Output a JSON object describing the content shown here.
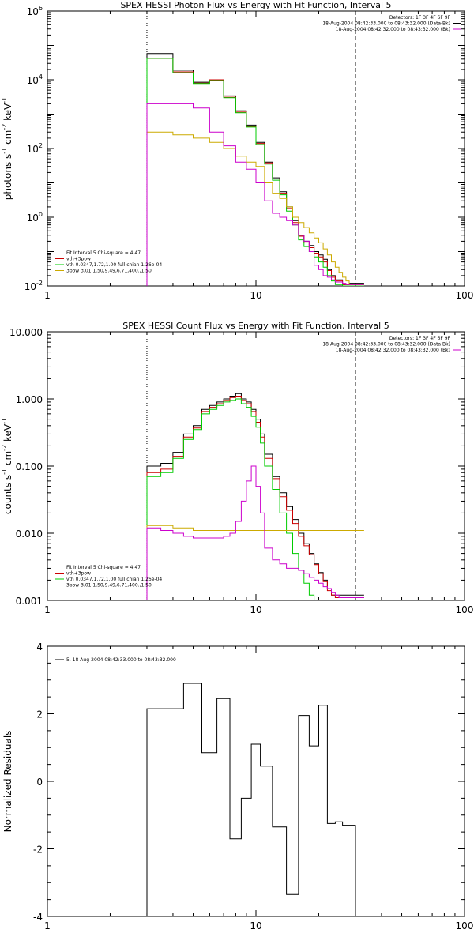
{
  "chart_data": [
    {
      "type": "line",
      "title": "SPEX HESSI Photon Flux vs Energy with Fit Function, Interval 5",
      "ylabel_parts": [
        "photons s",
        "-1",
        " cm",
        "-2",
        " keV",
        "-1"
      ],
      "xscale": "log",
      "yscale": "log",
      "xlim": [
        1,
        100
      ],
      "ylim": [
        0.01,
        1000000
      ],
      "x_ticks": [
        {
          "v": 1,
          "label": "1"
        },
        {
          "v": 10,
          "label": "10"
        },
        {
          "v": 100,
          "label": "100"
        }
      ],
      "y_ticks": [
        {
          "v": 0.01,
          "base": "10",
          "exp": "-2"
        },
        {
          "v": 1,
          "base": "10",
          "exp": "0"
        },
        {
          "v": 100,
          "base": "10",
          "exp": "2"
        },
        {
          "v": 10000,
          "base": "10",
          "exp": "4"
        },
        {
          "v": 1000000,
          "base": "10",
          "exp": "6"
        }
      ],
      "vlines": [
        {
          "x": 3.0,
          "style": "dotted"
        },
        {
          "x": 30.0,
          "style": "dashed"
        }
      ],
      "legend_top_right": [
        {
          "text": "Detectors: 1F 3F 4F 6F 9F",
          "color": ""
        },
        {
          "text": "18-Aug-2004 08:42:33.000 to 08:43:32.000 (Data-Bk)",
          "color": "#000000"
        },
        {
          "text": "18-Aug-2004 08:42:32.000 to 08:43:32.000 (Bk)",
          "color": "#cc00cc"
        }
      ],
      "legend_bottom_left": [
        {
          "text": "Fit Interval  5    Chi-square = 4.47",
          "color": ""
        },
        {
          "text": "vth+3pow",
          "color": "#cc0000"
        },
        {
          "text": "vth  0.0347,1.72,1.00  full chian 1.26e-04",
          "color": "#00cc00"
        },
        {
          "text": "3pow  3.01,1.50,9.49,6.71,400.,1.50",
          "color": "#ccaa00"
        }
      ],
      "bin_edges": [
        3.0,
        3.5,
        4.0,
        4.5,
        5.0,
        5.5,
        6.0,
        6.5,
        7.0,
        7.5,
        8.0,
        8.5,
        9.0,
        9.5,
        10.0,
        10.5,
        11.0,
        12.0,
        13.0,
        14.0,
        15.0,
        16.0,
        17.0,
        18.0,
        19.0,
        20.0,
        21.0,
        22.0,
        23.0,
        24.0,
        25.0,
        26.0,
        27.0,
        28.0,
        30.0,
        33.0
      ],
      "series": [
        {
          "name": "Data-Bk",
          "color": "#000000",
          "values": [
            58000,
            58000,
            19000,
            19000,
            8500,
            8500,
            10000,
            10000,
            3400,
            3400,
            1250,
            1250,
            480,
            480,
            150,
            150,
            40,
            14,
            5.5,
            2,
            0.8,
            0.3,
            0.2,
            0.15,
            0.1,
            0.08,
            0.06,
            0.03,
            0.02,
            0.015,
            0.015,
            0.011,
            0.011,
            0.012,
            0.012
          ]
        },
        {
          "name": "vth+3pow",
          "color": "#cc0000",
          "values": [
            42000,
            42000,
            17000,
            17000,
            8000,
            8000,
            10000,
            10000,
            3100,
            3100,
            1150,
            1150,
            430,
            430,
            140,
            140,
            38,
            13,
            5,
            1.8,
            0.7,
            0.28,
            0.18,
            0.13,
            0.09,
            0.07,
            0.05,
            0.028,
            0.018,
            0.014,
            0.014,
            0.011,
            0.011,
            0.011,
            0.011
          ]
        },
        {
          "name": "vth",
          "color": "#00cc00",
          "values": [
            42000,
            42000,
            16000,
            16000,
            7800,
            7800,
            9500,
            9500,
            3000,
            3000,
            1100,
            1100,
            420,
            420,
            130,
            130,
            35,
            12,
            4.5,
            1.5,
            0.6,
            0.22,
            0.14,
            0.1,
            0.07,
            0.05,
            0.035,
            0.02,
            0.014,
            0.011,
            0.011,
            0.01,
            0.01,
            0.01,
            0.01
          ]
        },
        {
          "name": "3pow",
          "color": "#ccaa00",
          "values": [
            300,
            300,
            250,
            250,
            200,
            200,
            150,
            150,
            100,
            100,
            60,
            60,
            40,
            40,
            30,
            30,
            10,
            5,
            3.5,
            2,
            1,
            0.7,
            0.5,
            0.35,
            0.25,
            0.18,
            0.12,
            0.08,
            0.05,
            0.035,
            0.025,
            0.018,
            0.014,
            0.011,
            0.011
          ]
        },
        {
          "name": "Bk",
          "color": "#cc00cc",
          "values": [
            2000,
            2000,
            2000,
            2000,
            1500,
            1500,
            300,
            300,
            120,
            120,
            40,
            40,
            25,
            25,
            10,
            10,
            3,
            1.3,
            1,
            0.8,
            0.6,
            0.3,
            0.2,
            0.1,
            0.04,
            0.03,
            0.02,
            0.018,
            0.015,
            0.013,
            0.013,
            0.012,
            0.011,
            0.011,
            0.011
          ]
        }
      ]
    },
    {
      "type": "line",
      "title": "SPEX HESSI Count Flux vs Energy with Fit Function, Interval 5",
      "ylabel_parts": [
        "counts s",
        "-1",
        " cm",
        "-2",
        " keV",
        "-1"
      ],
      "xscale": "log",
      "yscale": "log",
      "xlim": [
        1,
        100
      ],
      "ylim": [
        0.001,
        10
      ],
      "x_ticks": [
        {
          "v": 1,
          "label": "1"
        },
        {
          "v": 10,
          "label": "10"
        },
        {
          "v": 100,
          "label": "100"
        }
      ],
      "y_ticks": [
        {
          "v": 0.001,
          "label": "0.001"
        },
        {
          "v": 0.01,
          "label": "0.010"
        },
        {
          "v": 0.1,
          "label": "0.100"
        },
        {
          "v": 1,
          "label": "1.000"
        },
        {
          "v": 10,
          "label": "10.000"
        }
      ],
      "vlines": [
        {
          "x": 3.0,
          "style": "dotted"
        },
        {
          "x": 30.0,
          "style": "dashed"
        }
      ],
      "legend_top_right": [
        {
          "text": "Detectors: 1F 3F 4F 6F 9F",
          "color": ""
        },
        {
          "text": "18-Aug-2004 08:42:33.000 to 08:43:32.000 (Data-Bk)",
          "color": "#000000"
        },
        {
          "text": "18-Aug-2004 08:42:32.000 to 08:43:32.000 (Bk)",
          "color": "#cc00cc"
        }
      ],
      "legend_bottom_left": [
        {
          "text": "Fit Interval  5    Chi-square = 4.47",
          "color": ""
        },
        {
          "text": "vth+3pow",
          "color": "#cc0000"
        },
        {
          "text": "vth  0.0347,1.72,1.00  full chian 1.26e-04",
          "color": "#00cc00"
        },
        {
          "text": "3pow  3.01,1.50,9.49,6.71,400.,1.50",
          "color": "#ccaa00"
        }
      ],
      "bin_edges": [
        3.0,
        3.5,
        4.0,
        4.5,
        5.0,
        5.5,
        6.0,
        6.5,
        7.0,
        7.5,
        8.0,
        8.5,
        9.0,
        9.5,
        10.0,
        10.5,
        11.0,
        12.0,
        13.0,
        14.0,
        15.0,
        16.0,
        17.0,
        18.0,
        19.0,
        20.0,
        21.0,
        22.0,
        23.0,
        24.0,
        25.0,
        26.0,
        27.0,
        28.0,
        30.0,
        33.0
      ],
      "series": [
        {
          "name": "Data-Bk",
          "color": "#000000",
          "values": [
            0.1,
            0.11,
            0.16,
            0.3,
            0.4,
            0.7,
            0.8,
            0.9,
            1.0,
            1.1,
            1.2,
            1.0,
            0.9,
            0.7,
            0.5,
            0.3,
            0.15,
            0.07,
            0.04,
            0.025,
            0.016,
            0.01,
            0.007,
            0.005,
            0.0035,
            0.0026,
            0.002,
            0.0015,
            0.0012,
            0.0012,
            0.0012,
            0.0012,
            0.0012,
            0.0012,
            0.0012
          ]
        },
        {
          "name": "vth+3pow",
          "color": "#cc0000",
          "values": [
            0.08,
            0.09,
            0.14,
            0.27,
            0.37,
            0.65,
            0.75,
            0.85,
            0.95,
            1.05,
            1.1,
            0.95,
            0.85,
            0.65,
            0.45,
            0.27,
            0.13,
            0.065,
            0.035,
            0.022,
            0.014,
            0.009,
            0.0065,
            0.0048,
            0.0034,
            0.0025,
            0.0019,
            0.0014,
            0.0012,
            0.0011,
            0.0011,
            0.0011,
            0.0011,
            0.0011,
            0.0011
          ]
        },
        {
          "name": "vth",
          "color": "#00cc00",
          "values": [
            0.07,
            0.08,
            0.13,
            0.25,
            0.35,
            0.6,
            0.7,
            0.8,
            0.9,
            0.95,
            1.0,
            0.85,
            0.75,
            0.55,
            0.38,
            0.22,
            0.1,
            0.045,
            0.02,
            0.01,
            0.005,
            0.0028,
            0.0018,
            0.0012,
            0.001,
            0.001,
            0.001,
            0.001,
            0.001,
            0.001,
            0.001,
            0.001,
            0.001,
            0.001,
            0.001
          ]
        },
        {
          "name": "3pow",
          "color": "#ccaa00",
          "values": [
            0.013,
            0.013,
            0.012,
            0.012,
            0.011,
            0.011,
            0.011,
            0.011,
            0.011,
            0.011,
            0.011,
            0.011,
            0.011,
            0.011,
            0.011,
            0.011,
            0.011,
            0.011,
            0.011,
            0.011,
            0.011,
            0.011,
            0.011,
            0.011,
            0.011,
            0.011,
            0.011,
            0.011,
            0.011,
            0.011,
            0.011,
            0.011,
            0.011,
            0.011,
            0.011
          ]
        },
        {
          "name": "Bk",
          "color": "#cc00cc",
          "values": [
            0.012,
            0.011,
            0.01,
            0.009,
            0.0085,
            0.0085,
            0.0085,
            0.0085,
            0.009,
            0.01,
            0.015,
            0.03,
            0.06,
            0.1,
            0.05,
            0.02,
            0.006,
            0.004,
            0.0035,
            0.003,
            0.003,
            0.0028,
            0.0025,
            0.0022,
            0.002,
            0.0018,
            0.0016,
            0.0015,
            0.0013,
            0.0012,
            0.0011,
            0.0011,
            0.0011,
            0.0011,
            0.0011
          ]
        }
      ]
    },
    {
      "type": "line",
      "title": "",
      "ylabel": "Normalized Residuals",
      "xscale": "log",
      "yscale": "linear",
      "xlim": [
        1,
        100
      ],
      "ylim": [
        -4,
        4
      ],
      "x_ticks": [
        {
          "v": 1,
          "label": "1"
        },
        {
          "v": 10,
          "label": "10"
        },
        {
          "v": 100,
          "label": "100"
        }
      ],
      "y_ticks": [
        {
          "v": -4,
          "label": "-4"
        },
        {
          "v": -2,
          "label": "-2"
        },
        {
          "v": 0,
          "label": "0"
        },
        {
          "v": 2,
          "label": "2"
        },
        {
          "v": 4,
          "label": "4"
        }
      ],
      "legend_top_left": [
        {
          "text": "5. 18-Aug-2004 08:42:33.000 to 08:43:32.000",
          "color": "#000000"
        }
      ],
      "bin_edges": [
        3.0,
        3.5,
        4.0,
        4.5,
        5.0,
        5.5,
        6.0,
        6.5,
        7.0,
        7.5,
        8.0,
        8.5,
        9.0,
        9.5,
        10.0,
        10.5,
        11.0,
        12.0,
        13.0,
        14.0,
        15.0,
        16.0,
        17.0,
        18.0,
        19.0,
        20.0,
        21.0,
        22.0,
        23.0,
        24.0,
        25.0,
        26.0,
        27.0,
        28.0,
        30.0
      ],
      "series": [
        {
          "name": "",
          "color": "#000000",
          "values": [
            2.15,
            2.15,
            2.15,
            2.9,
            2.9,
            0.85,
            0.85,
            2.45,
            2.45,
            -1.7,
            -1.7,
            -0.5,
            -0.5,
            1.1,
            1.1,
            0.45,
            0.45,
            -1.35,
            -1.35,
            -3.35,
            -3.35,
            1.95,
            1.95,
            1.05,
            1.05,
            2.25,
            2.25,
            -1.25,
            -1.25,
            -1.2,
            -1.2,
            -1.3,
            -1.3,
            -1.3
          ]
        }
      ],
      "series_start": -4,
      "series_end": -4
    }
  ]
}
